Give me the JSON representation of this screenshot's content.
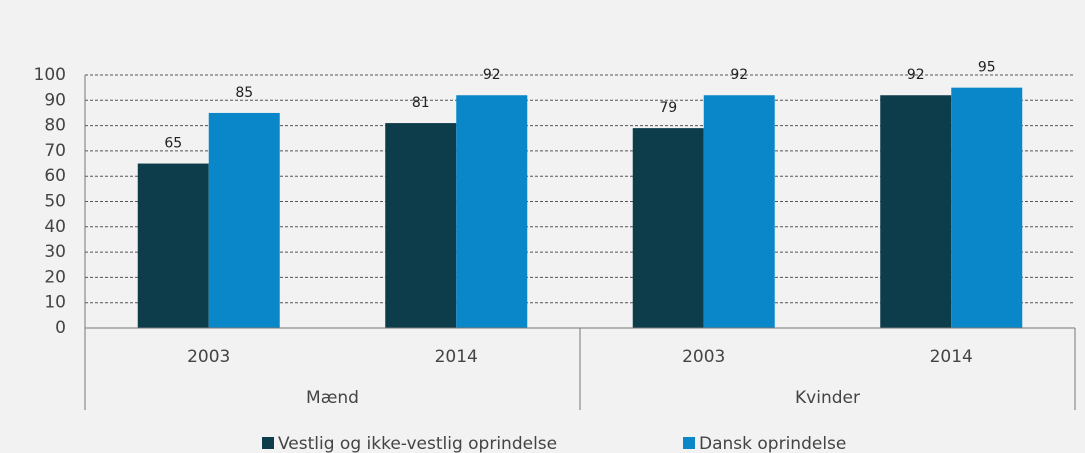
{
  "chart_data": {
    "type": "bar",
    "categories": [
      "2003",
      "2014",
      "2003",
      "2014"
    ],
    "groups": [
      "Mænd",
      "Kvinder"
    ],
    "series": [
      {
        "name": "Vestlig og ikke-vestlig oprindelse",
        "color": "#0d3d4b",
        "values": [
          65,
          81,
          79,
          92
        ]
      },
      {
        "name": "Dansk oprindelse",
        "color": "#0a87c9",
        "values": [
          85,
          92,
          92,
          95
        ]
      }
    ],
    "ylim": [
      0,
      100
    ],
    "yticks": [
      0,
      10,
      20,
      30,
      40,
      50,
      60,
      70,
      80,
      90,
      100
    ],
    "grid": true,
    "legend": "bottom"
  }
}
